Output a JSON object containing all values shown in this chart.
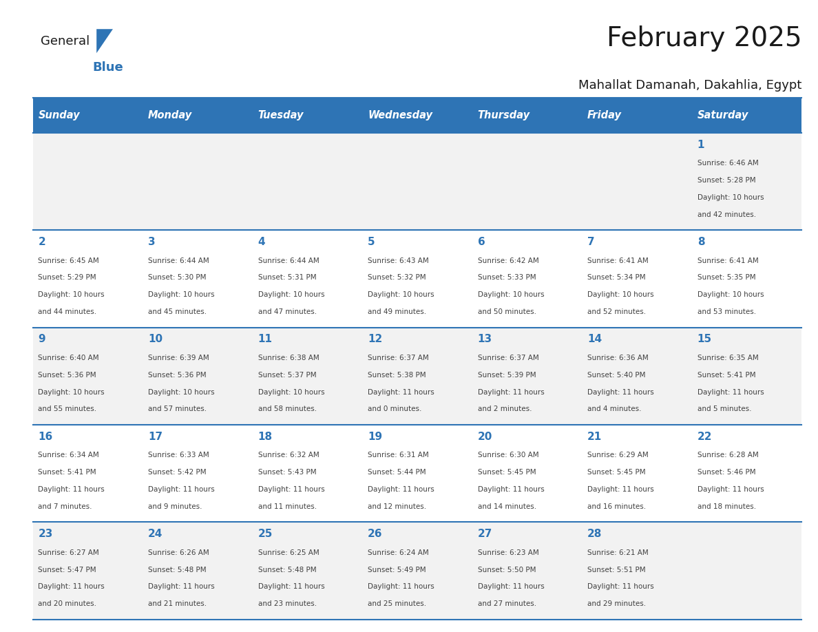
{
  "title": "February 2025",
  "subtitle": "Mahallat Damanah, Dakahlia, Egypt",
  "days_of_week": [
    "Sunday",
    "Monday",
    "Tuesday",
    "Wednesday",
    "Thursday",
    "Friday",
    "Saturday"
  ],
  "header_bg": "#2E74B5",
  "header_text": "#FFFFFF",
  "cell_bg_light": "#FFFFFF",
  "cell_bg_alt": "#F2F2F2",
  "border_color": "#2E74B5",
  "day_num_color": "#2E74B5",
  "cell_text_color": "#404040",
  "title_color": "#1a1a1a",
  "subtitle_color": "#1a1a1a",
  "logo_general_color": "#1a1a1a",
  "logo_blue_color": "#2E74B5",
  "calendar_data": [
    [
      null,
      null,
      null,
      null,
      null,
      null,
      {
        "day": 1,
        "sunrise": "6:46 AM",
        "sunset": "5:28 PM",
        "daylight": "10 hours and 42 minutes."
      }
    ],
    [
      {
        "day": 2,
        "sunrise": "6:45 AM",
        "sunset": "5:29 PM",
        "daylight": "10 hours and 44 minutes."
      },
      {
        "day": 3,
        "sunrise": "6:44 AM",
        "sunset": "5:30 PM",
        "daylight": "10 hours and 45 minutes."
      },
      {
        "day": 4,
        "sunrise": "6:44 AM",
        "sunset": "5:31 PM",
        "daylight": "10 hours and 47 minutes."
      },
      {
        "day": 5,
        "sunrise": "6:43 AM",
        "sunset": "5:32 PM",
        "daylight": "10 hours and 49 minutes."
      },
      {
        "day": 6,
        "sunrise": "6:42 AM",
        "sunset": "5:33 PM",
        "daylight": "10 hours and 50 minutes."
      },
      {
        "day": 7,
        "sunrise": "6:41 AM",
        "sunset": "5:34 PM",
        "daylight": "10 hours and 52 minutes."
      },
      {
        "day": 8,
        "sunrise": "6:41 AM",
        "sunset": "5:35 PM",
        "daylight": "10 hours and 53 minutes."
      }
    ],
    [
      {
        "day": 9,
        "sunrise": "6:40 AM",
        "sunset": "5:36 PM",
        "daylight": "10 hours and 55 minutes."
      },
      {
        "day": 10,
        "sunrise": "6:39 AM",
        "sunset": "5:36 PM",
        "daylight": "10 hours and 57 minutes."
      },
      {
        "day": 11,
        "sunrise": "6:38 AM",
        "sunset": "5:37 PM",
        "daylight": "10 hours and 58 minutes."
      },
      {
        "day": 12,
        "sunrise": "6:37 AM",
        "sunset": "5:38 PM",
        "daylight": "11 hours and 0 minutes."
      },
      {
        "day": 13,
        "sunrise": "6:37 AM",
        "sunset": "5:39 PM",
        "daylight": "11 hours and 2 minutes."
      },
      {
        "day": 14,
        "sunrise": "6:36 AM",
        "sunset": "5:40 PM",
        "daylight": "11 hours and 4 minutes."
      },
      {
        "day": 15,
        "sunrise": "6:35 AM",
        "sunset": "5:41 PM",
        "daylight": "11 hours and 5 minutes."
      }
    ],
    [
      {
        "day": 16,
        "sunrise": "6:34 AM",
        "sunset": "5:41 PM",
        "daylight": "11 hours and 7 minutes."
      },
      {
        "day": 17,
        "sunrise": "6:33 AM",
        "sunset": "5:42 PM",
        "daylight": "11 hours and 9 minutes."
      },
      {
        "day": 18,
        "sunrise": "6:32 AM",
        "sunset": "5:43 PM",
        "daylight": "11 hours and 11 minutes."
      },
      {
        "day": 19,
        "sunrise": "6:31 AM",
        "sunset": "5:44 PM",
        "daylight": "11 hours and 12 minutes."
      },
      {
        "day": 20,
        "sunrise": "6:30 AM",
        "sunset": "5:45 PM",
        "daylight": "11 hours and 14 minutes."
      },
      {
        "day": 21,
        "sunrise": "6:29 AM",
        "sunset": "5:45 PM",
        "daylight": "11 hours and 16 minutes."
      },
      {
        "day": 22,
        "sunrise": "6:28 AM",
        "sunset": "5:46 PM",
        "daylight": "11 hours and 18 minutes."
      }
    ],
    [
      {
        "day": 23,
        "sunrise": "6:27 AM",
        "sunset": "5:47 PM",
        "daylight": "11 hours and 20 minutes."
      },
      {
        "day": 24,
        "sunrise": "6:26 AM",
        "sunset": "5:48 PM",
        "daylight": "11 hours and 21 minutes."
      },
      {
        "day": 25,
        "sunrise": "6:25 AM",
        "sunset": "5:48 PM",
        "daylight": "11 hours and 23 minutes."
      },
      {
        "day": 26,
        "sunrise": "6:24 AM",
        "sunset": "5:49 PM",
        "daylight": "11 hours and 25 minutes."
      },
      {
        "day": 27,
        "sunrise": "6:23 AM",
        "sunset": "5:50 PM",
        "daylight": "11 hours and 27 minutes."
      },
      {
        "day": 28,
        "sunrise": "6:21 AM",
        "sunset": "5:51 PM",
        "daylight": "11 hours and 29 minutes."
      },
      null
    ]
  ]
}
